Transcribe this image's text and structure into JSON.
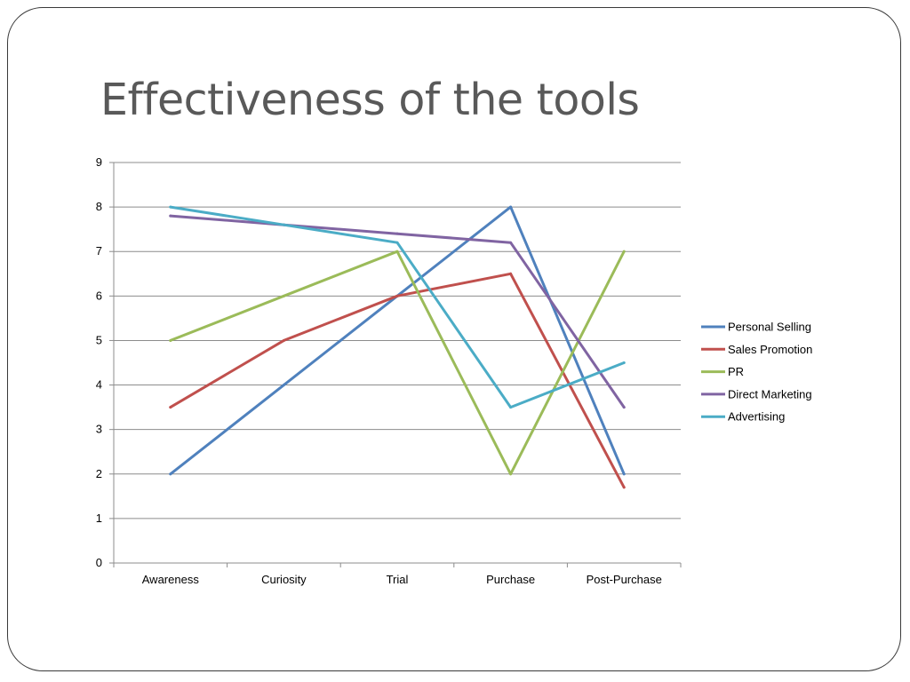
{
  "slide": {
    "title": "Effectiveness of the tools"
  },
  "chart_data": {
    "type": "line",
    "title": "",
    "xlabel": "",
    "ylabel": "",
    "categories": [
      "Awareness",
      "Curiosity",
      "Trial",
      "Purchase",
      "Post-Purchase"
    ],
    "ylim": [
      0,
      9
    ],
    "yticks": [
      0,
      1,
      2,
      3,
      4,
      5,
      6,
      7,
      8,
      9
    ],
    "grid": true,
    "legend_position": "right",
    "series": [
      {
        "name": "Personal Selling",
        "color": "#4F81BD",
        "values": [
          2,
          4,
          6,
          8,
          2
        ]
      },
      {
        "name": "Sales Promotion",
        "color": "#C0504D",
        "values": [
          3.5,
          5,
          6,
          6.5,
          1.7
        ]
      },
      {
        "name": "PR",
        "color": "#9BBB59",
        "values": [
          5,
          6,
          7,
          2,
          7
        ]
      },
      {
        "name": "Direct Marketing",
        "color": "#8064A2",
        "values": [
          7.8,
          7.6,
          7.4,
          7.2,
          3.5
        ]
      },
      {
        "name": "Advertising",
        "color": "#4BACC6",
        "values": [
          8,
          7.6,
          7.2,
          3.5,
          4.5
        ]
      }
    ]
  }
}
